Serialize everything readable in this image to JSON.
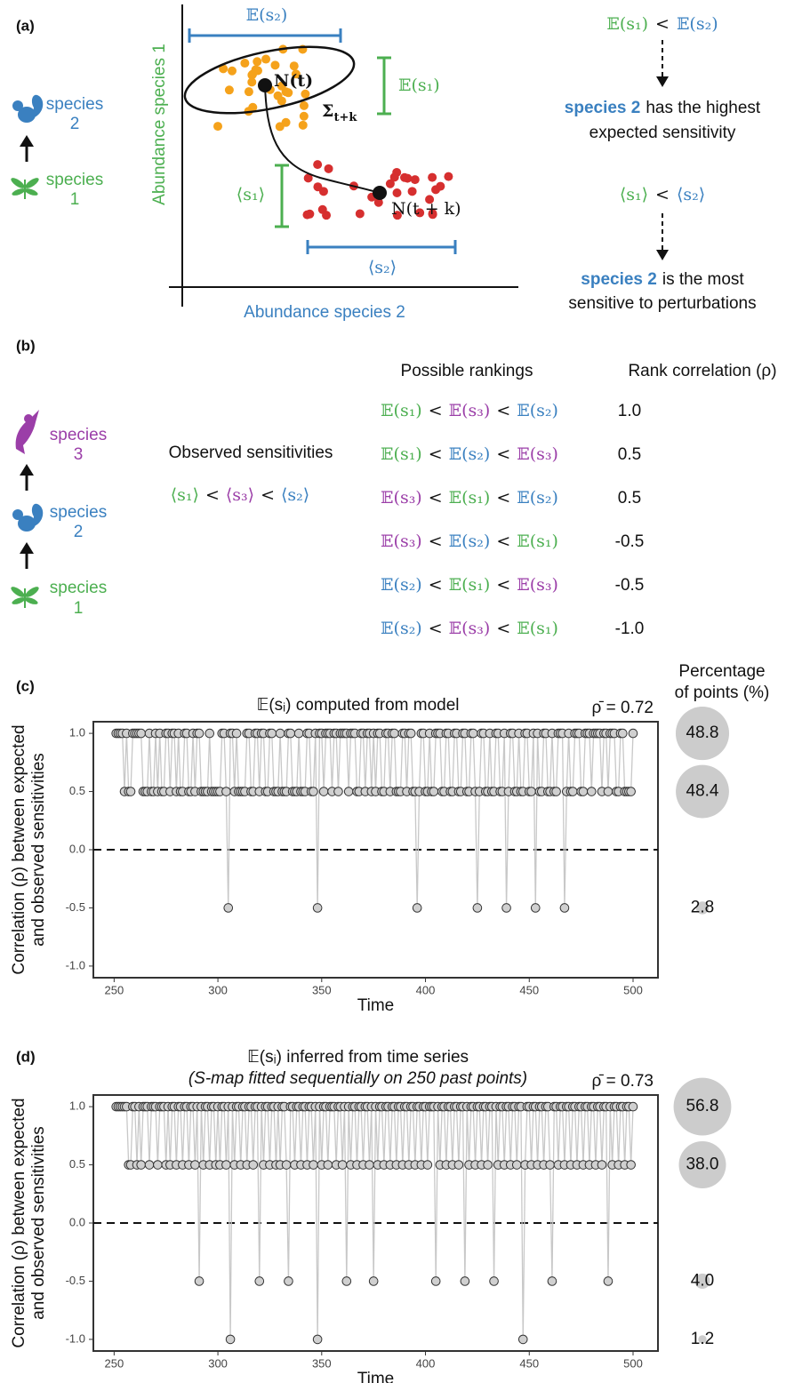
{
  "panel_labels": [
    "(a)",
    "(b)",
    "(c)",
    "(d)"
  ],
  "panel_a": {
    "species_labels": [
      [
        "species",
        "2"
      ],
      [
        "species",
        "1"
      ]
    ],
    "y_axis": "Abundance species 1",
    "x_axis": "Abundance species 2",
    "e_s2": "𝔼(s₂)",
    "e_s1": "𝔼(s₁)",
    "o_s1": "⟨s₁⟩",
    "o_s2": "⟨s₂⟩",
    "n_t": "N(t)",
    "sigma": "Σ",
    "sigma_sub": "t+k",
    "n_tk": "N(t + k)",
    "expected_ineq": [
      "𝔼(s₁)",
      "<",
      "𝔼(s₂)"
    ],
    "conclusion1": [
      "species 2",
      "has the highest",
      "expected sensitivity"
    ],
    "obs_ineq": [
      "⟨s₁⟩",
      "<",
      "⟨s₂⟩"
    ],
    "conclusion2": [
      "species 2",
      "is the most",
      "sensitive to perturbations"
    ]
  },
  "panel_b": {
    "species_labels": [
      [
        "species",
        "3"
      ],
      [
        "species",
        "2"
      ],
      [
        "species",
        "1"
      ]
    ],
    "observed_title": "Observed sensitivities",
    "observed": [
      "⟨s₁⟩",
      "<",
      "⟨s₃⟩",
      "<",
      "⟨s₂⟩"
    ],
    "rankings_title": "Possible rankings",
    "rho_title": "Rank correlation (ρ)",
    "rankings": [
      [
        "𝔼(s₁)",
        "<",
        "𝔼(s₃)",
        "<",
        "𝔼(s₂)"
      ],
      [
        "𝔼(s₁)",
        "<",
        "𝔼(s₂)",
        "<",
        "𝔼(s₃)"
      ],
      [
        "𝔼(s₃)",
        "<",
        "𝔼(s₁)",
        "<",
        "𝔼(s₂)"
      ],
      [
        "𝔼(s₃)",
        "<",
        "𝔼(s₂)",
        "<",
        "𝔼(s₁)"
      ],
      [
        "𝔼(s₂)",
        "<",
        "𝔼(s₁)",
        "<",
        "𝔼(s₃)"
      ],
      [
        "𝔼(s₂)",
        "<",
        "𝔼(s₃)",
        "<",
        "𝔼(s₁)"
      ]
    ],
    "rho": [
      "1.0",
      "0.5",
      "0.5",
      "-0.5",
      "-0.5",
      "-1.0"
    ],
    "species_colors": [
      "#4caf50",
      "#3a80c0",
      "#9b3ea8"
    ]
  },
  "chart_data": [
    {
      "type": "line",
      "title": "𝔼(sᵢ) computed from model",
      "annotation": "ρ̄ = 0.72",
      "xlabel": "Time",
      "ylabel": [
        "Correlation (ρ) between expected",
        "and observed sensitivities"
      ],
      "xlim": [
        240,
        512
      ],
      "xticks": [
        250,
        300,
        350,
        400,
        450,
        500
      ],
      "ylim": [
        -1.1,
        1.1
      ],
      "yticks": [
        {
          "value": -1,
          "label": "-1.0"
        },
        {
          "value": -0.5,
          "label": "-0.5"
        },
        {
          "value": 0,
          "label": "0.0"
        },
        {
          "value": 0.5,
          "label": "0.5"
        },
        {
          "value": 1,
          "label": "1.0"
        }
      ],
      "hline": 0,
      "line_color": "#c8c8c8",
      "marker_color": "#d0d0d0",
      "x": [
        251,
        252,
        253,
        254,
        255,
        256,
        257,
        258,
        259,
        260,
        261,
        262,
        263,
        264,
        265,
        266,
        267,
        268,
        269,
        270,
        271,
        272,
        273,
        274,
        275,
        276,
        277,
        278,
        279,
        280,
        281,
        282,
        283,
        284,
        285,
        286,
        287,
        288,
        289,
        290,
        291,
        292,
        293,
        294,
        295,
        296,
        297,
        298,
        299,
        300,
        301,
        302,
        303,
        304,
        305,
        306,
        307,
        308,
        309,
        310,
        311,
        312,
        313,
        314,
        315,
        316,
        317,
        318,
        319,
        320,
        321,
        322,
        323,
        324,
        325,
        326,
        327,
        328,
        329,
        330,
        331,
        332,
        333,
        334,
        335,
        336,
        337,
        338,
        339,
        340,
        341,
        342,
        343,
        344,
        345,
        346,
        347,
        348,
        349,
        350,
        351,
        352,
        353,
        354,
        355,
        356,
        357,
        358,
        359,
        360,
        361,
        362,
        363,
        364,
        365,
        366,
        367,
        368,
        369,
        370,
        371,
        372,
        373,
        374,
        375,
        376,
        377,
        378,
        379,
        380,
        381,
        382,
        383,
        384,
        385,
        386,
        387,
        388,
        389,
        390,
        391,
        392,
        393,
        394,
        395,
        396,
        397,
        398,
        399,
        400,
        401,
        402,
        403,
        404,
        405,
        406,
        407,
        408,
        409,
        410,
        411,
        412,
        413,
        414,
        415,
        416,
        417,
        418,
        419,
        420,
        421,
        422,
        423,
        424,
        425,
        426,
        427,
        428,
        429,
        430,
        431,
        432,
        433,
        434,
        435,
        436,
        437,
        438,
        439,
        440,
        441,
        442,
        443,
        444,
        445,
        446,
        447,
        448,
        449,
        450,
        451,
        452,
        453,
        454,
        455,
        456,
        457,
        458,
        459,
        460,
        461,
        462,
        463,
        464,
        465,
        466,
        467,
        468,
        469,
        470,
        471,
        472,
        473,
        474,
        475,
        476,
        477,
        478,
        479,
        480,
        481,
        482,
        483,
        484,
        485,
        486,
        487,
        488,
        489,
        490,
        491,
        492,
        493,
        494,
        495,
        496,
        497,
        498,
        499,
        500
      ],
      "values": [
        1,
        1,
        1,
        1,
        0.5,
        1,
        0.5,
        0.5,
        1,
        1,
        1,
        1,
        1,
        0.5,
        0.5,
        0.5,
        1,
        0.5,
        0.5,
        1,
        0.5,
        1,
        0.5,
        0.5,
        1,
        1,
        0.5,
        1,
        1,
        0.5,
        1,
        0.5,
        0.5,
        1,
        1,
        0.5,
        0.5,
        1,
        0.5,
        1,
        1,
        0.5,
        0.5,
        0.5,
        0.5,
        1,
        0.5,
        0.5,
        0.5,
        0.5,
        0.5,
        1,
        1,
        0.5,
        -0.5,
        1,
        1,
        0.5,
        1,
        0.5,
        0.5,
        0.5,
        0.5,
        1,
        1,
        0.5,
        0.5,
        1,
        1,
        0.5,
        1,
        1,
        0.5,
        0.5,
        1,
        1,
        0.5,
        0.5,
        0.5,
        1,
        0.5,
        0.5,
        0.5,
        1,
        1,
        0.5,
        0.5,
        0.5,
        1,
        0.5,
        0.5,
        0.5,
        1,
        1,
        0.5,
        0.5,
        1,
        -0.5,
        1,
        1,
        0.5,
        1,
        1,
        1,
        0.5,
        1,
        1,
        0.5,
        1,
        1,
        1,
        1,
        0.5,
        1,
        1,
        1,
        0.5,
        0.5,
        1,
        1,
        0.5,
        1,
        1,
        0.5,
        1,
        0.5,
        1,
        1,
        0.5,
        0.5,
        1,
        1,
        0.5,
        1,
        1,
        0.5,
        0.5,
        0.5,
        1,
        1,
        0.5,
        1,
        1,
        0.5,
        0.5,
        -0.5,
        0.5,
        1,
        1,
        0.5,
        0.5,
        1,
        0.5,
        0.5,
        1,
        1,
        1,
        0.5,
        0.5,
        1,
        1,
        0.5,
        0.5,
        1,
        1,
        0.5,
        0.5,
        1,
        1,
        0.5,
        0.5,
        1,
        1,
        0.5,
        -0.5,
        0.5,
        1,
        1,
        0.5,
        0.5,
        1,
        0.5,
        0.5,
        1,
        1,
        0.5,
        0.5,
        1,
        -0.5,
        0.5,
        1,
        1,
        0.5,
        0.5,
        1,
        0.5,
        0.5,
        1,
        1,
        0.5,
        0.5,
        1,
        -0.5,
        1,
        0.5,
        0.5,
        1,
        1,
        0.5,
        0.5,
        1,
        0.5,
        0.5,
        1,
        1,
        1,
        -0.5,
        0.5,
        1,
        0.5,
        0.5,
        1,
        1,
        1,
        0.5,
        0.5,
        1,
        1,
        1,
        0.5,
        1,
        1,
        1,
        1,
        0.5,
        1,
        1,
        0.5,
        1,
        1,
        1,
        0.5,
        0.5,
        1,
        1,
        0.5,
        0.5,
        0.5,
        0.5,
        1
      ],
      "bubbles": {
        "title": [
          "Percentage",
          "of points (%)"
        ],
        "levels": [
          1,
          0.5,
          -0.5
        ],
        "values": [
          48.8,
          48.4,
          2.8
        ],
        "color": "#cccccc"
      }
    },
    {
      "type": "line",
      "title": "𝔼(sᵢ) inferred from time series",
      "subtitle": "(S-map fitted sequentially on 250 past points)",
      "annotation": "ρ̄ = 0.73",
      "xlabel": "Time",
      "ylabel": [
        "Correlation (ρ) between expected",
        "and observed sensitivities"
      ],
      "xlim": [
        240,
        512
      ],
      "xticks": [
        250,
        300,
        350,
        400,
        450,
        500
      ],
      "ylim": [
        -1.1,
        1.1
      ],
      "yticks": [
        {
          "value": -1,
          "label": "-1.0"
        },
        {
          "value": -0.5,
          "label": "-0.5"
        },
        {
          "value": 0,
          "label": "0.0"
        },
        {
          "value": 0.5,
          "label": "0.5"
        },
        {
          "value": 1,
          "label": "1.0"
        }
      ],
      "hline": 0,
      "line_color": "#c8c8c8",
      "marker_color": "#d0d0d0",
      "x": [
        251,
        252,
        253,
        254,
        255,
        256,
        257,
        258,
        259,
        260,
        261,
        262,
        263,
        264,
        265,
        266,
        267,
        268,
        269,
        270,
        271,
        272,
        273,
        274,
        275,
        276,
        277,
        278,
        279,
        280,
        281,
        282,
        283,
        284,
        285,
        286,
        287,
        288,
        289,
        290,
        291,
        292,
        293,
        294,
        295,
        296,
        297,
        298,
        299,
        300,
        301,
        302,
        303,
        304,
        305,
        306,
        307,
        308,
        309,
        310,
        311,
        312,
        313,
        314,
        315,
        316,
        317,
        318,
        319,
        320,
        321,
        322,
        323,
        324,
        325,
        326,
        327,
        328,
        329,
        330,
        331,
        332,
        333,
        334,
        335,
        336,
        337,
        338,
        339,
        340,
        341,
        342,
        343,
        344,
        345,
        346,
        347,
        348,
        349,
        350,
        351,
        352,
        353,
        354,
        355,
        356,
        357,
        358,
        359,
        360,
        361,
        362,
        363,
        364,
        365,
        366,
        367,
        368,
        369,
        370,
        371,
        372,
        373,
        374,
        375,
        376,
        377,
        378,
        379,
        380,
        381,
        382,
        383,
        384,
        385,
        386,
        387,
        388,
        389,
        390,
        391,
        392,
        393,
        394,
        395,
        396,
        397,
        398,
        399,
        400,
        401,
        402,
        403,
        404,
        405,
        406,
        407,
        408,
        409,
        410,
        411,
        412,
        413,
        414,
        415,
        416,
        417,
        418,
        419,
        420,
        421,
        422,
        423,
        424,
        425,
        426,
        427,
        428,
        429,
        430,
        431,
        432,
        433,
        434,
        435,
        436,
        437,
        438,
        439,
        440,
        441,
        442,
        443,
        444,
        445,
        446,
        447,
        448,
        449,
        450,
        451,
        452,
        453,
        454,
        455,
        456,
        457,
        458,
        459,
        460,
        461,
        462,
        463,
        464,
        465,
        466,
        467,
        468,
        469,
        470,
        471,
        472,
        473,
        474,
        475,
        476,
        477,
        478,
        479,
        480,
        481,
        482,
        483,
        484,
        485,
        486,
        487,
        488,
        489,
        490,
        491,
        492,
        493,
        494,
        495,
        496,
        497,
        498,
        499,
        500
      ],
      "values": [
        1,
        1,
        1,
        1,
        1,
        1,
        0.5,
        0.5,
        1,
        1,
        0.5,
        1,
        0.5,
        1,
        1,
        1,
        0.5,
        1,
        1,
        1,
        0.5,
        1,
        1,
        1,
        0.5,
        1,
        0.5,
        1,
        1,
        0.5,
        1,
        1,
        0.5,
        1,
        1,
        0.5,
        1,
        1,
        0.5,
        1,
        -0.5,
        1,
        0.5,
        1,
        1,
        0.5,
        1,
        1,
        0.5,
        1,
        0.5,
        1,
        1,
        0.5,
        1,
        -1,
        1,
        0.5,
        1,
        1,
        0.5,
        1,
        1,
        0.5,
        1,
        1,
        0.5,
        1,
        1,
        -0.5,
        1,
        0.5,
        1,
        1,
        0.5,
        1,
        1,
        0.5,
        1,
        0.5,
        1,
        1,
        0.5,
        -0.5,
        1,
        1,
        0.5,
        1,
        1,
        0.5,
        1,
        1,
        0.5,
        1,
        1,
        0.5,
        1,
        -1,
        1,
        0.5,
        1,
        1,
        0.5,
        1,
        1,
        1,
        0.5,
        1,
        1,
        0.5,
        1,
        -0.5,
        1,
        0.5,
        1,
        1,
        0.5,
        1,
        1,
        0.5,
        1,
        1,
        0.5,
        1,
        -0.5,
        1,
        0.5,
        1,
        1,
        0.5,
        1,
        1,
        0.5,
        1,
        1,
        0.5,
        1,
        1,
        0.5,
        1,
        1,
        0.5,
        1,
        1,
        0.5,
        1,
        1,
        0.5,
        1,
        1,
        0.5,
        1,
        1,
        1,
        -0.5,
        1,
        0.5,
        1,
        1,
        0.5,
        1,
        1,
        0.5,
        1,
        1,
        0.5,
        1,
        1,
        -0.5,
        1,
        0.5,
        1,
        1,
        0.5,
        1,
        1,
        0.5,
        1,
        1,
        0.5,
        1,
        1,
        -0.5,
        1,
        0.5,
        1,
        1,
        0.5,
        1,
        1,
        0.5,
        1,
        1,
        0.5,
        1,
        1,
        -1,
        0.5,
        1,
        1,
        0.5,
        1,
        1,
        0.5,
        1,
        1,
        0.5,
        1,
        1,
        0.5,
        -0.5,
        1,
        1,
        0.5,
        1,
        1,
        0.5,
        1,
        1,
        0.5,
        1,
        1,
        0.5,
        1,
        1,
        0.5,
        1,
        1,
        0.5,
        1,
        1,
        0.5,
        1,
        1,
        0.5,
        1,
        1,
        -0.5,
        1,
        0.5,
        1,
        1,
        0.5,
        1,
        1,
        0.5,
        1,
        1,
        0.5,
        1
      ],
      "bubbles": {
        "levels": [
          1,
          0.5,
          -0.5,
          -1
        ],
        "values": [
          56.8,
          38,
          4,
          1.2
        ],
        "value_labels": [
          "56.8",
          "38.0",
          "4.0",
          "1.2"
        ],
        "color": "#cccccc"
      }
    }
  ]
}
